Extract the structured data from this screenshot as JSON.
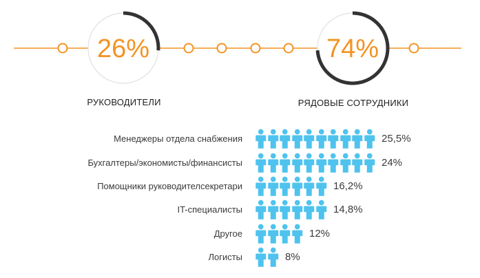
{
  "colors": {
    "accent": "#f39323",
    "ring_track": "#e6e6e6",
    "ring_progress": "#333333",
    "person_icon": "#4fc3ee"
  },
  "chart_data": [
    {
      "type": "donut",
      "title": "",
      "slices": [
        {
          "label": "РУКОВОДИТЕЛИ",
          "display": "26%",
          "value": 26
        },
        {
          "label": "РЯДОВЫЕ СОТРУДНИКИ",
          "display": "74%",
          "value": 74
        }
      ]
    },
    {
      "type": "bar",
      "title": "",
      "icon": "person-icon",
      "categories": [
        "Менеджеры отдела снабжения",
        "Бухгалтеры/экономисты/финансисты",
        "Помощники руководителсекретари",
        "IT-специалисты",
        "Другое",
        "Логисты"
      ],
      "values": [
        25.5,
        24,
        16.2,
        14.8,
        12,
        8
      ],
      "value_labels": [
        "25,5%",
        "24%",
        "16,2%",
        "14,8%",
        "12%",
        "8%"
      ],
      "icon_counts": [
        10,
        10,
        6,
        6,
        4,
        2
      ]
    }
  ]
}
